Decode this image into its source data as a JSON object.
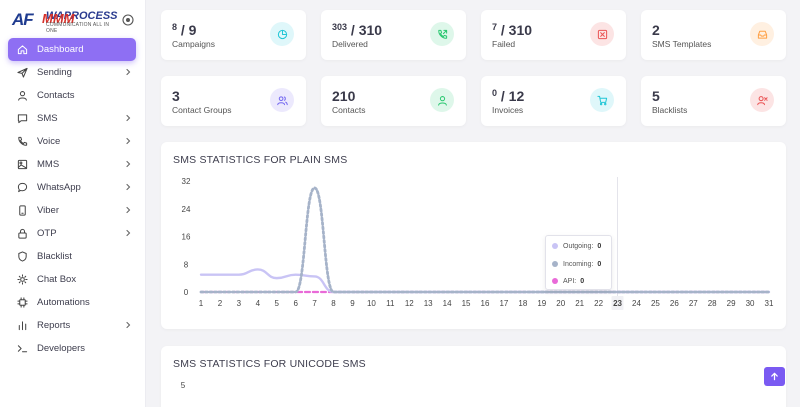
{
  "brand": {
    "mark": "AF",
    "name": "WAPROCESS",
    "overlay": "MMM",
    "tagline": "COMMUNICATION ALL IN ONE"
  },
  "sidebar": {
    "items": [
      {
        "label": "Dashboard",
        "icon": "home-icon",
        "has_submenu": false,
        "active": true
      },
      {
        "label": "Sending",
        "icon": "send-icon",
        "has_submenu": true,
        "active": false
      },
      {
        "label": "Contacts",
        "icon": "user-icon",
        "has_submenu": false,
        "active": false
      },
      {
        "label": "SMS",
        "icon": "message-icon",
        "has_submenu": true,
        "active": false
      },
      {
        "label": "Voice",
        "icon": "phone-icon",
        "has_submenu": true,
        "active": false
      },
      {
        "label": "MMS",
        "icon": "image-icon",
        "has_submenu": true,
        "active": false
      },
      {
        "label": "WhatsApp",
        "icon": "chat-bubble-icon",
        "has_submenu": true,
        "active": false
      },
      {
        "label": "Viber",
        "icon": "mobile-icon",
        "has_submenu": true,
        "active": false
      },
      {
        "label": "OTP",
        "icon": "lock-icon",
        "has_submenu": true,
        "active": false
      },
      {
        "label": "Blacklist",
        "icon": "shield-icon",
        "has_submenu": false,
        "active": false
      },
      {
        "label": "Chat Box",
        "icon": "chat-box-icon",
        "has_submenu": false,
        "active": false
      },
      {
        "label": "Automations",
        "icon": "chip-icon",
        "has_submenu": false,
        "active": false
      },
      {
        "label": "Reports",
        "icon": "bar-chart-icon",
        "has_submenu": true,
        "active": false
      },
      {
        "label": "Developers",
        "icon": "terminal-icon",
        "has_submenu": false,
        "active": false
      }
    ]
  },
  "stats": [
    {
      "sup": "8",
      "rest": " / 9",
      "label": "Campaigns",
      "icon": "pie-chart-icon",
      "color": "#20c6d6",
      "bg": "#dff7fa"
    },
    {
      "sup": "303",
      "rest": " / 310",
      "label": "Delivered",
      "icon": "phone-outgoing-icon",
      "color": "#28c76f",
      "bg": "#def7ea"
    },
    {
      "sup": "7",
      "rest": " / 310",
      "label": "Failed",
      "icon": "x-square-icon",
      "color": "#ea5455",
      "bg": "#fce4e4"
    },
    {
      "sup": "",
      "rest": "2",
      "label": "SMS Templates",
      "icon": "inbox-icon",
      "color": "#ff9f43",
      "bg": "#fff0e1"
    },
    {
      "sup": "",
      "rest": "3",
      "label": "Contact Groups",
      "icon": "users-icon",
      "color": "#7367f0",
      "bg": "#ece9fd"
    },
    {
      "sup": "",
      "rest": "210",
      "label": "Contacts",
      "icon": "user-icon",
      "color": "#28c76f",
      "bg": "#def7ea"
    },
    {
      "sup": "0",
      "rest": " / 12",
      "label": "Invoices",
      "icon": "cart-icon",
      "color": "#20c6d6",
      "bg": "#dff7fa"
    },
    {
      "sup": "",
      "rest": "5",
      "label": "Blacklists",
      "icon": "user-x-icon",
      "color": "#ea5455",
      "bg": "#fce4e4"
    }
  ],
  "chart_data": [
    {
      "type": "line",
      "title": "SMS STATISTICS FOR PLAIN SMS",
      "x": [
        1,
        2,
        3,
        4,
        5,
        6,
        7,
        8,
        9,
        10,
        11,
        12,
        13,
        14,
        15,
        16,
        17,
        18,
        19,
        20,
        21,
        22,
        23,
        24,
        25,
        26,
        27,
        28,
        29,
        30,
        31
      ],
      "ylim": [
        0,
        32
      ],
      "yticks": [
        0,
        8,
        16,
        24,
        32
      ],
      "highlight_x": 23,
      "series": [
        {
          "name": "Outgoing",
          "color": "#c9c4f5",
          "values": [
            5,
            5,
            5,
            6.5,
            4,
            5,
            4.5,
            0,
            0,
            0,
            0,
            0,
            0,
            0,
            0,
            0,
            0,
            0,
            0,
            0,
            0,
            0,
            0,
            0,
            0,
            0,
            0,
            0,
            0,
            0,
            0
          ]
        },
        {
          "name": "Incoming",
          "color": "#a6b3c9",
          "values": [
            0,
            0,
            0,
            0,
            0,
            0,
            30,
            0,
            0,
            0,
            0,
            0,
            0,
            0,
            0,
            0,
            0,
            0,
            0,
            0,
            0,
            0,
            0,
            0,
            0,
            0,
            0,
            0,
            0,
            0,
            0
          ]
        },
        {
          "name": "API",
          "color": "#e96ad8",
          "values": [
            0,
            0,
            0,
            0,
            0,
            0,
            0,
            0,
            0,
            0,
            0,
            0,
            0,
            0,
            0,
            0,
            0,
            0,
            0,
            0,
            0,
            0,
            0,
            0,
            0,
            0,
            0,
            0,
            0,
            0,
            0
          ]
        }
      ],
      "tooltip": {
        "rows": [
          {
            "name": "Outgoing",
            "value": "0"
          },
          {
            "name": "Incoming",
            "value": "0"
          },
          {
            "name": "API",
            "value": "0"
          }
        ]
      }
    },
    {
      "type": "line",
      "title": "SMS STATISTICS FOR UNICODE SMS",
      "yticks_visible": [
        5
      ]
    }
  ]
}
